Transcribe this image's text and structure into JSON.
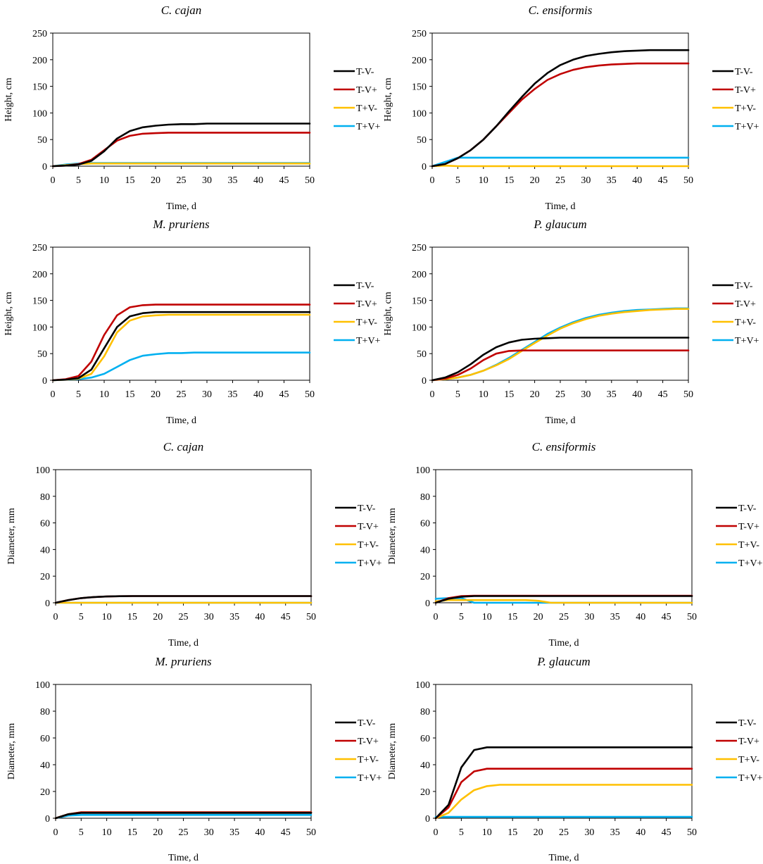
{
  "colors": {
    "T-V-": "#000000",
    "T-V+": "#c00000",
    "T+V-": "#ffc000",
    "T+V+": "#00b0f0"
  },
  "chart_data": [
    {
      "type": "line",
      "title": "C. cajan",
      "xlabel": "Time, d",
      "ylabel": "Height, cm",
      "xlim": [
        0,
        50
      ],
      "ylim": [
        0,
        250
      ],
      "xticks": [
        0,
        5,
        10,
        15,
        20,
        25,
        30,
        35,
        40,
        45,
        50
      ],
      "yticks": [
        0,
        50,
        100,
        150,
        200,
        250
      ],
      "series": [
        {
          "name": "T-V-",
          "values": [
            0,
            1,
            3,
            10,
            28,
            52,
            66,
            73,
            76,
            78,
            79,
            79,
            80,
            80,
            80,
            80,
            80,
            80,
            80,
            80,
            80
          ]
        },
        {
          "name": "T-V+",
          "values": [
            0,
            1,
            4,
            12,
            30,
            48,
            57,
            61,
            62,
            63,
            63,
            63,
            63,
            63,
            63,
            63,
            63,
            63,
            63,
            63,
            63
          ]
        },
        {
          "name": "T+V-",
          "values": [
            0,
            2,
            4,
            5,
            5,
            5,
            5,
            5,
            5,
            5,
            5,
            5,
            5,
            5,
            5,
            5,
            5,
            5,
            5,
            5,
            5
          ]
        },
        {
          "name": "T+V+",
          "values": [
            0,
            3,
            5,
            6,
            6,
            6,
            6,
            6,
            6,
            6,
            6,
            6,
            6,
            6,
            6,
            6,
            6,
            6,
            6,
            6,
            6
          ]
        }
      ]
    },
    {
      "type": "line",
      "title": "C. ensiformis",
      "xlabel": "Time, d",
      "ylabel": "Height, cm",
      "xlim": [
        0,
        50
      ],
      "ylim": [
        0,
        250
      ],
      "xticks": [
        0,
        5,
        10,
        15,
        20,
        25,
        30,
        35,
        40,
        45,
        50
      ],
      "yticks": [
        0,
        50,
        100,
        150,
        200,
        250
      ],
      "series": [
        {
          "name": "T-V-",
          "values": [
            0,
            4,
            15,
            30,
            50,
            75,
            103,
            130,
            155,
            175,
            190,
            200,
            207,
            211,
            214,
            216,
            217,
            218,
            218,
            218,
            218
          ]
        },
        {
          "name": "T-V+",
          "values": [
            0,
            4,
            15,
            30,
            50,
            75,
            100,
            125,
            145,
            162,
            173,
            181,
            186,
            189,
            191,
            192,
            193,
            193,
            193,
            193,
            193
          ]
        },
        {
          "name": "T+V-",
          "values": [
            0,
            1,
            0,
            0,
            0,
            0,
            0,
            0,
            0,
            0,
            0,
            0,
            0,
            0,
            0,
            0,
            0,
            0,
            0,
            0,
            0
          ]
        },
        {
          "name": "T+V+",
          "values": [
            0,
            8,
            16,
            16,
            16,
            16,
            16,
            16,
            16,
            16,
            16,
            16,
            16,
            16,
            16,
            16,
            16,
            16,
            16,
            16,
            16
          ]
        }
      ]
    },
    {
      "type": "line",
      "title": "M. pruriens",
      "xlabel": "Time, d",
      "ylabel": "Height, cm",
      "xlim": [
        0,
        50
      ],
      "ylim": [
        0,
        250
      ],
      "xticks": [
        0,
        5,
        10,
        15,
        20,
        25,
        30,
        35,
        40,
        45,
        50
      ],
      "yticks": [
        0,
        50,
        100,
        150,
        200,
        250
      ],
      "series": [
        {
          "name": "T-V-",
          "values": [
            0,
            1,
            4,
            20,
            60,
            100,
            120,
            126,
            128,
            128,
            128,
            128,
            128,
            128,
            128,
            128,
            128,
            128,
            128,
            128,
            128
          ]
        },
        {
          "name": "T-V+",
          "values": [
            0,
            2,
            8,
            35,
            85,
            122,
            137,
            141,
            142,
            142,
            142,
            142,
            142,
            142,
            142,
            142,
            142,
            142,
            142,
            142,
            142
          ]
        },
        {
          "name": "T+V-",
          "values": [
            0,
            1,
            3,
            12,
            45,
            90,
            112,
            120,
            122,
            123,
            123,
            123,
            123,
            123,
            123,
            123,
            123,
            123,
            123,
            123,
            123
          ]
        },
        {
          "name": "T+V+",
          "values": [
            0,
            1,
            2,
            5,
            12,
            25,
            38,
            46,
            49,
            51,
            51,
            52,
            52,
            52,
            52,
            52,
            52,
            52,
            52,
            52,
            52
          ]
        }
      ]
    },
    {
      "type": "line",
      "title": "P. glaucum",
      "xlabel": "Time, d",
      "ylabel": "Height, cm",
      "xlim": [
        0,
        50
      ],
      "ylim": [
        0,
        250
      ],
      "xticks": [
        0,
        5,
        10,
        15,
        20,
        25,
        30,
        35,
        40,
        45,
        50
      ],
      "yticks": [
        0,
        50,
        100,
        150,
        200,
        250
      ],
      "series": [
        {
          "name": "T-V-",
          "values": [
            0,
            5,
            15,
            30,
            48,
            62,
            71,
            76,
            78,
            79,
            80,
            80,
            80,
            80,
            80,
            80,
            80,
            80,
            80,
            80,
            80
          ]
        },
        {
          "name": "T-V+",
          "values": [
            0,
            3,
            10,
            22,
            38,
            50,
            55,
            56,
            56,
            56,
            56,
            56,
            56,
            56,
            56,
            56,
            56,
            56,
            56,
            56,
            56
          ]
        },
        {
          "name": "T+V-",
          "values": [
            0,
            2,
            5,
            10,
            18,
            28,
            40,
            55,
            70,
            84,
            97,
            107,
            115,
            121,
            125,
            128,
            130,
            132,
            133,
            134,
            134
          ]
        },
        {
          "name": "T+V+",
          "values": [
            0,
            2,
            5,
            10,
            18,
            29,
            42,
            57,
            72,
            87,
            99,
            109,
            117,
            123,
            127,
            130,
            132,
            133,
            134,
            135,
            135
          ]
        }
      ]
    },
    {
      "type": "line",
      "title": "C. cajan",
      "xlabel": "Time, d",
      "ylabel": "Diameter, mm",
      "xlim": [
        0,
        50
      ],
      "ylim": [
        0,
        100
      ],
      "xticks": [
        0,
        5,
        10,
        15,
        20,
        25,
        30,
        35,
        40,
        45,
        50
      ],
      "yticks": [
        0,
        20,
        40,
        60,
        80,
        100
      ],
      "series": [
        {
          "name": "T-V-",
          "values": [
            0,
            2,
            3.5,
            4.3,
            4.7,
            4.9,
            5,
            5,
            5,
            5,
            5,
            5,
            5,
            5,
            5,
            5,
            5,
            5,
            5,
            5,
            5
          ]
        },
        {
          "name": "T-V+",
          "values": [
            0,
            2,
            3.5,
            4.3,
            4.7,
            4.9,
            5,
            5,
            5,
            5,
            5,
            5,
            5,
            5,
            5,
            5,
            5,
            5,
            5,
            5,
            5
          ]
        },
        {
          "name": "T+V-",
          "values": [
            0,
            0,
            0,
            0,
            0,
            0,
            0,
            0,
            0,
            0,
            0,
            0,
            0,
            0,
            0,
            0,
            0,
            0,
            0,
            0,
            0
          ]
        },
        {
          "name": "T+V+",
          "values": [
            0,
            0,
            0,
            0,
            0,
            0,
            0,
            0,
            0,
            0,
            0,
            0,
            0,
            0,
            0,
            0,
            0,
            0,
            0,
            0,
            0
          ]
        }
      ]
    },
    {
      "type": "line",
      "title": "C. ensiformis",
      "xlabel": "Time, d",
      "ylabel": "Diameter, mm",
      "xlim": [
        0,
        50
      ],
      "ylim": [
        0,
        100
      ],
      "xticks": [
        0,
        5,
        10,
        15,
        20,
        25,
        30,
        35,
        40,
        45,
        50
      ],
      "yticks": [
        0,
        20,
        40,
        60,
        80,
        100
      ],
      "series": [
        {
          "name": "T-V-",
          "values": [
            0,
            3,
            4.5,
            5,
            5,
            5,
            5,
            5,
            5,
            5,
            5,
            5,
            5,
            5,
            5,
            5,
            5,
            5,
            5,
            5,
            5
          ]
        },
        {
          "name": "T-V+",
          "values": [
            0,
            3.5,
            5,
            5.3,
            5.3,
            5.3,
            5.3,
            5.3,
            5.3,
            5.3,
            5.3,
            5.3,
            5.3,
            5.3,
            5.3,
            5.3,
            5.3,
            5.3,
            5.3,
            5.3,
            5.3
          ]
        },
        {
          "name": "T+V-",
          "values": [
            1,
            2,
            2,
            2,
            2,
            2,
            2,
            2,
            1.5,
            0,
            0,
            0,
            0,
            0,
            0,
            0,
            0,
            0,
            0,
            0,
            0
          ]
        },
        {
          "name": "T+V+",
          "values": [
            3,
            3.5,
            3.5,
            0,
            0,
            0,
            0,
            0,
            0,
            0,
            0,
            0,
            0,
            0,
            0,
            0,
            0,
            0,
            0,
            0,
            0
          ]
        }
      ]
    },
    {
      "type": "line",
      "title": "M. pruriens",
      "xlabel": "Time, d",
      "ylabel": "Diameter, mm",
      "xlim": [
        0,
        50
      ],
      "ylim": [
        0,
        100
      ],
      "xticks": [
        0,
        5,
        10,
        15,
        20,
        25,
        30,
        35,
        40,
        45,
        50
      ],
      "yticks": [
        0,
        20,
        40,
        60,
        80,
        100
      ],
      "series": [
        {
          "name": "T-V-",
          "values": [
            0,
            3,
            4,
            4,
            4,
            4,
            4,
            4,
            4,
            4,
            4,
            4,
            4,
            4,
            4,
            4,
            4,
            4,
            4,
            4,
            4
          ]
        },
        {
          "name": "T-V+",
          "values": [
            0,
            3,
            4.5,
            4.5,
            4.5,
            4.5,
            4.5,
            4.5,
            4.5,
            4.5,
            4.5,
            4.5,
            4.5,
            4.5,
            4.5,
            4.5,
            4.5,
            4.5,
            4.5,
            4.5,
            4.5
          ]
        },
        {
          "name": "T+V-",
          "values": [
            0,
            3,
            4.5,
            4.5,
            4.5,
            4.5,
            4.5,
            4.5,
            4.5,
            4.5,
            4.5,
            4.5,
            4.5,
            4.5,
            4.5,
            4.5,
            4.5,
            4.5,
            4.5,
            4.5,
            4.5
          ]
        },
        {
          "name": "T+V+",
          "values": [
            0,
            2,
            2.5,
            2.5,
            2.5,
            2.5,
            2.5,
            2.5,
            2.5,
            2.5,
            2.5,
            2.5,
            2.5,
            2.5,
            2.5,
            2.5,
            2.5,
            2.5,
            2.5,
            2.5,
            2.5
          ]
        }
      ]
    },
    {
      "type": "line",
      "title": "P. glaucum",
      "xlabel": "Time, d",
      "ylabel": "Diameter, mm",
      "xlim": [
        0,
        50
      ],
      "ylim": [
        0,
        100
      ],
      "xticks": [
        0,
        5,
        10,
        15,
        20,
        25,
        30,
        35,
        40,
        45,
        50
      ],
      "yticks": [
        0,
        20,
        40,
        60,
        80,
        100
      ],
      "series": [
        {
          "name": "T-V-",
          "values": [
            0,
            10,
            38,
            51,
            53,
            53,
            53,
            53,
            53,
            53,
            53,
            53,
            53,
            53,
            53,
            53,
            53,
            53,
            53,
            53,
            53
          ]
        },
        {
          "name": "T-V+",
          "values": [
            0,
            8,
            27,
            35,
            37,
            37,
            37,
            37,
            37,
            37,
            37,
            37,
            37,
            37,
            37,
            37,
            37,
            37,
            37,
            37,
            37
          ]
        },
        {
          "name": "T+V-",
          "values": [
            0,
            4,
            14,
            21,
            24,
            25,
            25,
            25,
            25,
            25,
            25,
            25,
            25,
            25,
            25,
            25,
            25,
            25,
            25,
            25,
            25
          ]
        },
        {
          "name": "T+V+",
          "values": [
            1,
            1,
            1,
            1,
            1,
            1,
            1,
            1,
            1,
            1,
            1,
            1,
            1,
            1,
            1,
            1,
            1,
            1,
            1,
            1,
            1
          ]
        }
      ]
    }
  ],
  "x_step": 2.5
}
